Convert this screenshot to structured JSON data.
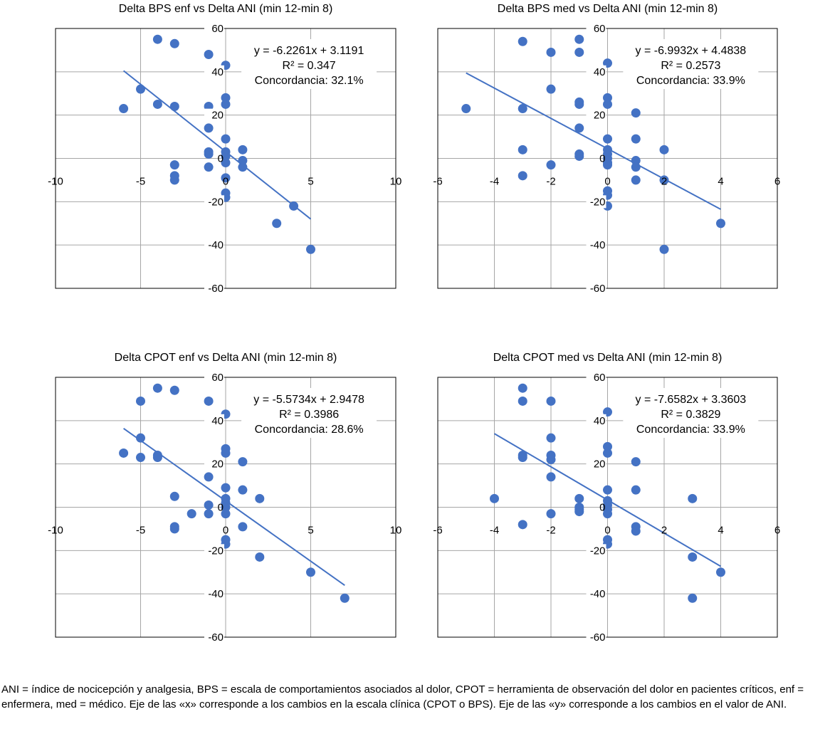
{
  "figure": {
    "caption": "ANI = índice de nocicepción y analgesia, BPS = escala de comportamientos asociados al dolor, CPOT = herramienta de observación del dolor en pacientes críticos, enf = enfermera, med = médico. Eje de las «x» corresponde a los cambios en la escala clínica (CPOT o BPS). Eje de las «y» corresponde a los cambios en el valor de ANI."
  },
  "colors": {
    "marker": "#4472C4",
    "trendline": "#4472C4",
    "grid": "#A6A6A6",
    "axis": "#808080",
    "frame": "#000000"
  },
  "chart_data": [
    {
      "type": "scatter",
      "title": "Delta BPS enf vs Delta ANI (min 12-min 8)",
      "xlabel": "",
      "ylabel": "",
      "xlim": [
        -10,
        10
      ],
      "ylim": [
        -60,
        60
      ],
      "xticks": [
        -10,
        -5,
        0,
        5,
        10
      ],
      "yticks": [
        -60,
        -40,
        -20,
        0,
        20,
        40,
        60
      ],
      "grid": true,
      "annotation": [
        "y = -6.2261x + 3.1191",
        "R² = 0.347",
        "Concordancia: 32.1%"
      ],
      "trendline": {
        "slope": -6.2261,
        "intercept": 3.1191,
        "x_range": [
          -6,
          5
        ]
      },
      "points": [
        [
          -4,
          55
        ],
        [
          -3,
          53
        ],
        [
          -1,
          48
        ],
        [
          0,
          43
        ],
        [
          -5,
          32
        ],
        [
          -6,
          23
        ],
        [
          -4,
          25
        ],
        [
          -3,
          24
        ],
        [
          -1,
          24
        ],
        [
          0,
          28
        ],
        [
          0,
          25
        ],
        [
          -1,
          14
        ],
        [
          0,
          9
        ],
        [
          -1,
          3
        ],
        [
          -1,
          2
        ],
        [
          0,
          3
        ],
        [
          0,
          1
        ],
        [
          0,
          -2
        ],
        [
          1,
          4
        ],
        [
          1,
          -1
        ],
        [
          1,
          -4
        ],
        [
          -3,
          -3
        ],
        [
          -3,
          -8
        ],
        [
          -3,
          -10
        ],
        [
          -1,
          -4
        ],
        [
          0,
          -9
        ],
        [
          0,
          -16
        ],
        [
          0,
          -18
        ],
        [
          4,
          -22
        ],
        [
          3,
          -30
        ],
        [
          5,
          -42
        ]
      ]
    },
    {
      "type": "scatter",
      "title": "Delta BPS med vs Delta ANI (min 12-min 8)",
      "xlabel": "",
      "ylabel": "",
      "xlim": [
        -6,
        6
      ],
      "ylim": [
        -60,
        60
      ],
      "xticks": [
        -6,
        -4,
        -2,
        0,
        2,
        4,
        6
      ],
      "yticks": [
        -60,
        -40,
        -20,
        0,
        20,
        40,
        60
      ],
      "grid": true,
      "annotation": [
        "y = -6.9932x + 4.4838",
        "R² = 0.2573",
        "Concordancia: 33.9%"
      ],
      "trendline": {
        "slope": -6.9932,
        "intercept": 4.4838,
        "x_range": [
          -5,
          4
        ]
      },
      "points": [
        [
          -3,
          54
        ],
        [
          -1,
          55
        ],
        [
          -2,
          49
        ],
        [
          -1,
          49
        ],
        [
          0,
          44
        ],
        [
          -2,
          32
        ],
        [
          -5,
          23
        ],
        [
          -3,
          23
        ],
        [
          -1,
          26
        ],
        [
          -1,
          25
        ],
        [
          0,
          28
        ],
        [
          0,
          25
        ],
        [
          1,
          21
        ],
        [
          -1,
          14
        ],
        [
          0,
          9
        ],
        [
          1,
          9
        ],
        [
          -3,
          4
        ],
        [
          -1,
          2
        ],
        [
          -1,
          1
        ],
        [
          0,
          4
        ],
        [
          0,
          2
        ],
        [
          0,
          0
        ],
        [
          0,
          -2
        ],
        [
          0,
          -3
        ],
        [
          2,
          4
        ],
        [
          1,
          -1
        ],
        [
          1,
          -4
        ],
        [
          -2,
          -3
        ],
        [
          -3,
          -8
        ],
        [
          1,
          -10
        ],
        [
          2,
          -10
        ],
        [
          0,
          -15
        ],
        [
          0,
          -17
        ],
        [
          0,
          -22
        ],
        [
          4,
          -30
        ],
        [
          2,
          -42
        ]
      ]
    },
    {
      "type": "scatter",
      "title": "Delta CPOT enf vs Delta ANI (min 12-min 8)",
      "xlabel": "",
      "ylabel": "",
      "xlim": [
        -10,
        10
      ],
      "ylim": [
        -60,
        60
      ],
      "xticks": [
        -10,
        -5,
        0,
        5,
        10
      ],
      "yticks": [
        -60,
        -40,
        -20,
        0,
        20,
        40,
        60
      ],
      "grid": true,
      "annotation": [
        "y = -5.5734x + 2.9478",
        "R² = 0.3986",
        "Concordancia: 28.6%"
      ],
      "trendline": {
        "slope": -5.5734,
        "intercept": 2.9478,
        "x_range": [
          -6,
          7
        ]
      },
      "points": [
        [
          -4,
          55
        ],
        [
          -3,
          54
        ],
        [
          -5,
          49
        ],
        [
          -1,
          49
        ],
        [
          0,
          43
        ],
        [
          -5,
          32
        ],
        [
          -6,
          25
        ],
        [
          -5,
          23
        ],
        [
          -4,
          24
        ],
        [
          -4,
          23
        ],
        [
          0,
          27
        ],
        [
          0,
          25
        ],
        [
          1,
          21
        ],
        [
          -1,
          14
        ],
        [
          0,
          9
        ],
        [
          1,
          8
        ],
        [
          2,
          4
        ],
        [
          -3,
          5
        ],
        [
          -1,
          1
        ],
        [
          0,
          4
        ],
        [
          0,
          2
        ],
        [
          0,
          0
        ],
        [
          0,
          -3
        ],
        [
          -2,
          -3
        ],
        [
          -1,
          -3
        ],
        [
          -3,
          -9
        ],
        [
          -3,
          -10
        ],
        [
          1,
          -9
        ],
        [
          0,
          -15
        ],
        [
          0,
          -17
        ],
        [
          2,
          -23
        ],
        [
          5,
          -30
        ],
        [
          7,
          -42
        ]
      ]
    },
    {
      "type": "scatter",
      "title": "Delta CPOT med vs Delta ANI (min 12-min 8)",
      "xlabel": "",
      "ylabel": "",
      "xlim": [
        -6,
        6
      ],
      "ylim": [
        -60,
        60
      ],
      "xticks": [
        -6,
        -4,
        -2,
        0,
        2,
        4,
        6
      ],
      "yticks": [
        -60,
        -40,
        -20,
        0,
        20,
        40,
        60
      ],
      "grid": true,
      "annotation": [
        "y = -7.6582x + 3.3603",
        "R² = 0.3829",
        "Concordancia: 33.9%"
      ],
      "trendline": {
        "slope": -7.6582,
        "intercept": 3.3603,
        "x_range": [
          -4,
          4
        ]
      },
      "points": [
        [
          -3,
          55
        ],
        [
          -3,
          49
        ],
        [
          -2,
          49
        ],
        [
          0,
          44
        ],
        [
          -2,
          32
        ],
        [
          -3,
          24
        ],
        [
          -3,
          23
        ],
        [
          -2,
          24
        ],
        [
          -2,
          22
        ],
        [
          0,
          28
        ],
        [
          0,
          25
        ],
        [
          1,
          21
        ],
        [
          -2,
          14
        ],
        [
          0,
          8
        ],
        [
          1,
          8
        ],
        [
          -4,
          4
        ],
        [
          -1,
          4
        ],
        [
          3,
          4
        ],
        [
          -1,
          0
        ],
        [
          -1,
          -1
        ],
        [
          -1,
          -2
        ],
        [
          0,
          3
        ],
        [
          0,
          1
        ],
        [
          0,
          -1
        ],
        [
          0,
          -3
        ],
        [
          -2,
          -3
        ],
        [
          -3,
          -8
        ],
        [
          1,
          -9
        ],
        [
          1,
          -11
        ],
        [
          0,
          -15
        ],
        [
          0,
          -17
        ],
        [
          3,
          -23
        ],
        [
          4,
          -30
        ],
        [
          3,
          -42
        ]
      ]
    }
  ]
}
